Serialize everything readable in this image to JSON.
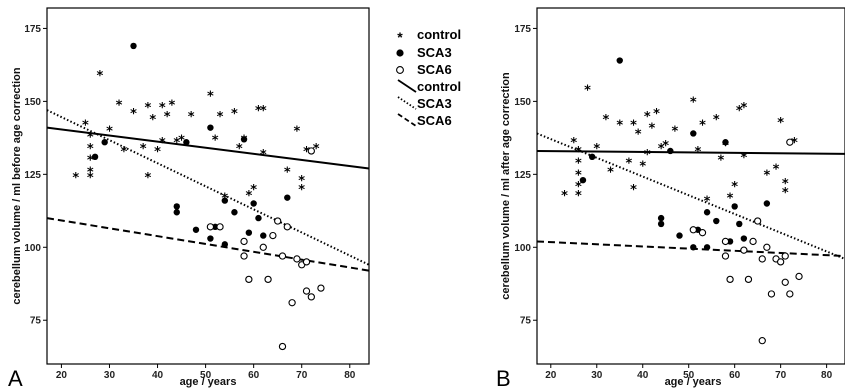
{
  "chart_data": [
    {
      "type": "scatter",
      "panel_label": "A",
      "xlabel": "age / years",
      "ylabel": "cerebellum volume / ml before age correction",
      "xlim": [
        17,
        84
      ],
      "ylim": [
        60,
        182
      ],
      "xticks": [
        "20",
        "30",
        "40",
        "50",
        "60",
        "70",
        "80"
      ],
      "yticks": [
        "75",
        "100",
        "125",
        "150",
        "175"
      ],
      "series": [
        {
          "name": "control",
          "marker": "star",
          "points": [
            [
              23,
              124
            ],
            [
              25,
              142
            ],
            [
              26,
              138
            ],
            [
              26,
              134
            ],
            [
              26,
              130
            ],
            [
              26,
              126
            ],
            [
              26,
              124
            ],
            [
              28,
              159
            ],
            [
              30,
              140
            ],
            [
              32,
              149
            ],
            [
              33,
              133
            ],
            [
              35,
              146
            ],
            [
              37,
              134
            ],
            [
              38,
              148
            ],
            [
              38,
              124
            ],
            [
              39,
              144
            ],
            [
              40,
              133
            ],
            [
              41,
              148
            ],
            [
              41,
              136
            ],
            [
              42,
              145
            ],
            [
              43,
              149
            ],
            [
              44,
              136
            ],
            [
              45,
              137
            ],
            [
              47,
              145
            ],
            [
              51,
              152
            ],
            [
              52,
              137
            ],
            [
              53,
              145
            ],
            [
              54,
              117
            ],
            [
              56,
              146
            ],
            [
              57,
              134
            ],
            [
              58,
              137
            ],
            [
              59,
              118
            ],
            [
              60,
              120
            ],
            [
              61,
              147
            ],
            [
              62,
              147
            ],
            [
              62,
              132
            ],
            [
              67,
              126
            ],
            [
              69,
              140
            ],
            [
              70,
              123
            ],
            [
              70,
              120
            ],
            [
              71,
              133
            ],
            [
              73,
              134
            ]
          ]
        },
        {
          "name": "SCA3",
          "marker": "filled-circle",
          "points": [
            [
              27,
              131
            ],
            [
              29,
              136
            ],
            [
              35,
              169
            ],
            [
              44,
              114
            ],
            [
              44,
              112
            ],
            [
              46,
              136
            ],
            [
              48,
              106
            ],
            [
              51,
              103
            ],
            [
              51,
              141
            ],
            [
              52,
              107
            ],
            [
              54,
              101
            ],
            [
              54,
              116
            ],
            [
              56,
              112
            ],
            [
              58,
              137
            ],
            [
              59,
              105
            ],
            [
              60,
              115
            ],
            [
              61,
              110
            ],
            [
              62,
              104
            ],
            [
              67,
              117
            ]
          ]
        },
        {
          "name": "SCA6",
          "marker": "open-circle",
          "points": [
            [
              51,
              107
            ],
            [
              53,
              107
            ],
            [
              58,
              97
            ],
            [
              58,
              102
            ],
            [
              59,
              89
            ],
            [
              62,
              100
            ],
            [
              63,
              89
            ],
            [
              64,
              104
            ],
            [
              65,
              109
            ],
            [
              66,
              66
            ],
            [
              66,
              97
            ],
            [
              67,
              107
            ],
            [
              68,
              81
            ],
            [
              69,
              96
            ],
            [
              70,
              94
            ],
            [
              71,
              95
            ],
            [
              71,
              85
            ],
            [
              72,
              133
            ],
            [
              72,
              83
            ],
            [
              74,
              86
            ]
          ]
        }
      ],
      "fits": [
        {
          "name": "control",
          "style": "solid",
          "y_start": 141,
          "y_end": 127
        },
        {
          "name": "SCA3",
          "style": "dotted",
          "y_start": 147,
          "y_end": 94
        },
        {
          "name": "SCA6",
          "style": "dashed",
          "y_start": 110,
          "y_end": 92
        }
      ]
    },
    {
      "type": "scatter",
      "panel_label": "B",
      "xlabel": "age / years",
      "ylabel": "cerebellum volume / ml after age correction",
      "xlim": [
        17,
        84
      ],
      "ylim": [
        60,
        182
      ],
      "xticks": [
        "20",
        "30",
        "40",
        "50",
        "60",
        "70",
        "80"
      ],
      "yticks": [
        "75",
        "100",
        "125",
        "150",
        "175"
      ],
      "series": [
        {
          "name": "control",
          "marker": "star",
          "points": [
            [
              23,
              118
            ],
            [
              25,
              136
            ],
            [
              26,
              133
            ],
            [
              26,
              129
            ],
            [
              26,
              125
            ],
            [
              26,
              121
            ],
            [
              26,
              118
            ],
            [
              28,
              154
            ],
            [
              30,
              134
            ],
            [
              32,
              144
            ],
            [
              33,
              126
            ],
            [
              35,
              142
            ],
            [
              37,
              129
            ],
            [
              38,
              142
            ],
            [
              38,
              120
            ],
            [
              39,
              139
            ],
            [
              40,
              128
            ],
            [
              41,
              145
            ],
            [
              41,
              132
            ],
            [
              42,
              141
            ],
            [
              43,
              146
            ],
            [
              44,
              134
            ],
            [
              45,
              135
            ],
            [
              47,
              140
            ],
            [
              51,
              150
            ],
            [
              52,
              133
            ],
            [
              53,
              142
            ],
            [
              54,
              116
            ],
            [
              56,
              144
            ],
            [
              57,
              130
            ],
            [
              58,
              135
            ],
            [
              59,
              117
            ],
            [
              60,
              121
            ],
            [
              61,
              147
            ],
            [
              62,
              148
            ],
            [
              62,
              131
            ],
            [
              67,
              125
            ],
            [
              69,
              127
            ],
            [
              70,
              143
            ],
            [
              71,
              122
            ],
            [
              71,
              119
            ],
            [
              73,
              136
            ]
          ]
        },
        {
          "name": "SCA3",
          "marker": "filled-circle",
          "points": [
            [
              27,
              123
            ],
            [
              29,
              131
            ],
            [
              35,
              164
            ],
            [
              44,
              110
            ],
            [
              44,
              108
            ],
            [
              46,
              133
            ],
            [
              48,
              104
            ],
            [
              51,
              100
            ],
            [
              51,
              139
            ],
            [
              52,
              106
            ],
            [
              54,
              100
            ],
            [
              54,
              112
            ],
            [
              56,
              109
            ],
            [
              58,
              136
            ],
            [
              59,
              102
            ],
            [
              60,
              114
            ],
            [
              61,
              108
            ],
            [
              62,
              103
            ],
            [
              67,
              115
            ]
          ]
        },
        {
          "name": "SCA6",
          "marker": "open-circle",
          "points": [
            [
              51,
              106
            ],
            [
              53,
              105
            ],
            [
              58,
              97
            ],
            [
              58,
              102
            ],
            [
              59,
              89
            ],
            [
              62,
              99
            ],
            [
              63,
              89
            ],
            [
              64,
              102
            ],
            [
              65,
              109
            ],
            [
              66,
              68
            ],
            [
              66,
              96
            ],
            [
              67,
              100
            ],
            [
              68,
              84
            ],
            [
              69,
              96
            ],
            [
              70,
              95
            ],
            [
              71,
              97
            ],
            [
              71,
              88
            ],
            [
              72,
              136
            ],
            [
              72,
              84
            ],
            [
              74,
              90
            ]
          ]
        }
      ],
      "fits": [
        {
          "name": "control",
          "style": "solid",
          "y_start": 133,
          "y_end": 132
        },
        {
          "name": "SCA3",
          "style": "dotted",
          "y_start": 139,
          "y_end": 96
        },
        {
          "name": "SCA6",
          "style": "dashed",
          "y_start": 102,
          "y_end": 97
        }
      ]
    }
  ],
  "legend": {
    "placement": "between panels",
    "markers": [
      {
        "label": "control",
        "marker": "star"
      },
      {
        "label": "SCA3",
        "marker": "filled-circle"
      },
      {
        "label": "SCA6",
        "marker": "open-circle"
      }
    ],
    "lines": [
      {
        "label": "control",
        "style": "solid"
      },
      {
        "label": "SCA3",
        "style": "dotted"
      },
      {
        "label": "SCA6",
        "style": "dashed"
      }
    ]
  }
}
